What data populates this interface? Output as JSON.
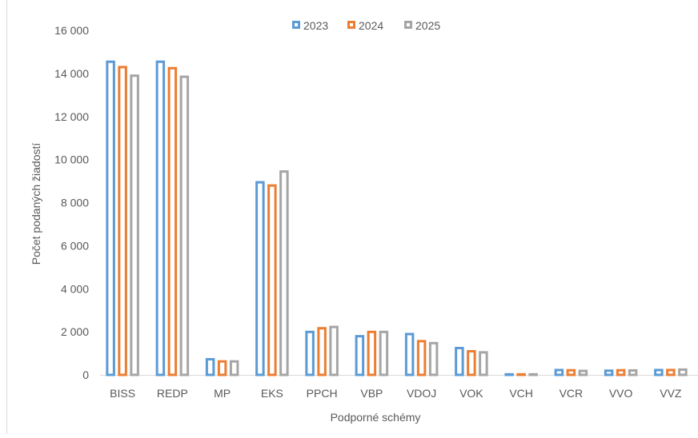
{
  "chart_data": {
    "type": "bar",
    "title": "",
    "xlabel": "Podporné schémy",
    "ylabel": "Počet podaných žiadostí",
    "ylim": [
      0,
      16000
    ],
    "yticks": [
      0,
      2000,
      4000,
      6000,
      8000,
      10000,
      12000,
      14000,
      16000
    ],
    "ytick_labels": [
      "0",
      "2 000",
      "4 000",
      "6 000",
      "8 000",
      "10 000",
      "12 000",
      "14 000",
      "16 000"
    ],
    "grid": false,
    "legend_position": "top-center",
    "categories": [
      "BISS",
      "REDP",
      "MP",
      "EKS",
      "PPCH",
      "VBP",
      "VDOJ",
      "VOK",
      "VCH",
      "VCR",
      "VVO",
      "VVZ"
    ],
    "series": [
      {
        "name": "2023",
        "color": "#5b9bd5",
        "values": [
          14600,
          14600,
          780,
          9000,
          2050,
          1850,
          1950,
          1300,
          80,
          280,
          250,
          280
        ]
      },
      {
        "name": "2024",
        "color": "#ed7d31",
        "values": [
          14350,
          14300,
          680,
          8850,
          2220,
          2050,
          1620,
          1150,
          80,
          270,
          270,
          280
        ]
      },
      {
        "name": "2025",
        "color": "#a5a5a5",
        "values": [
          13950,
          13900,
          680,
          9500,
          2280,
          2050,
          1530,
          1100,
          80,
          240,
          260,
          300
        ]
      }
    ]
  }
}
